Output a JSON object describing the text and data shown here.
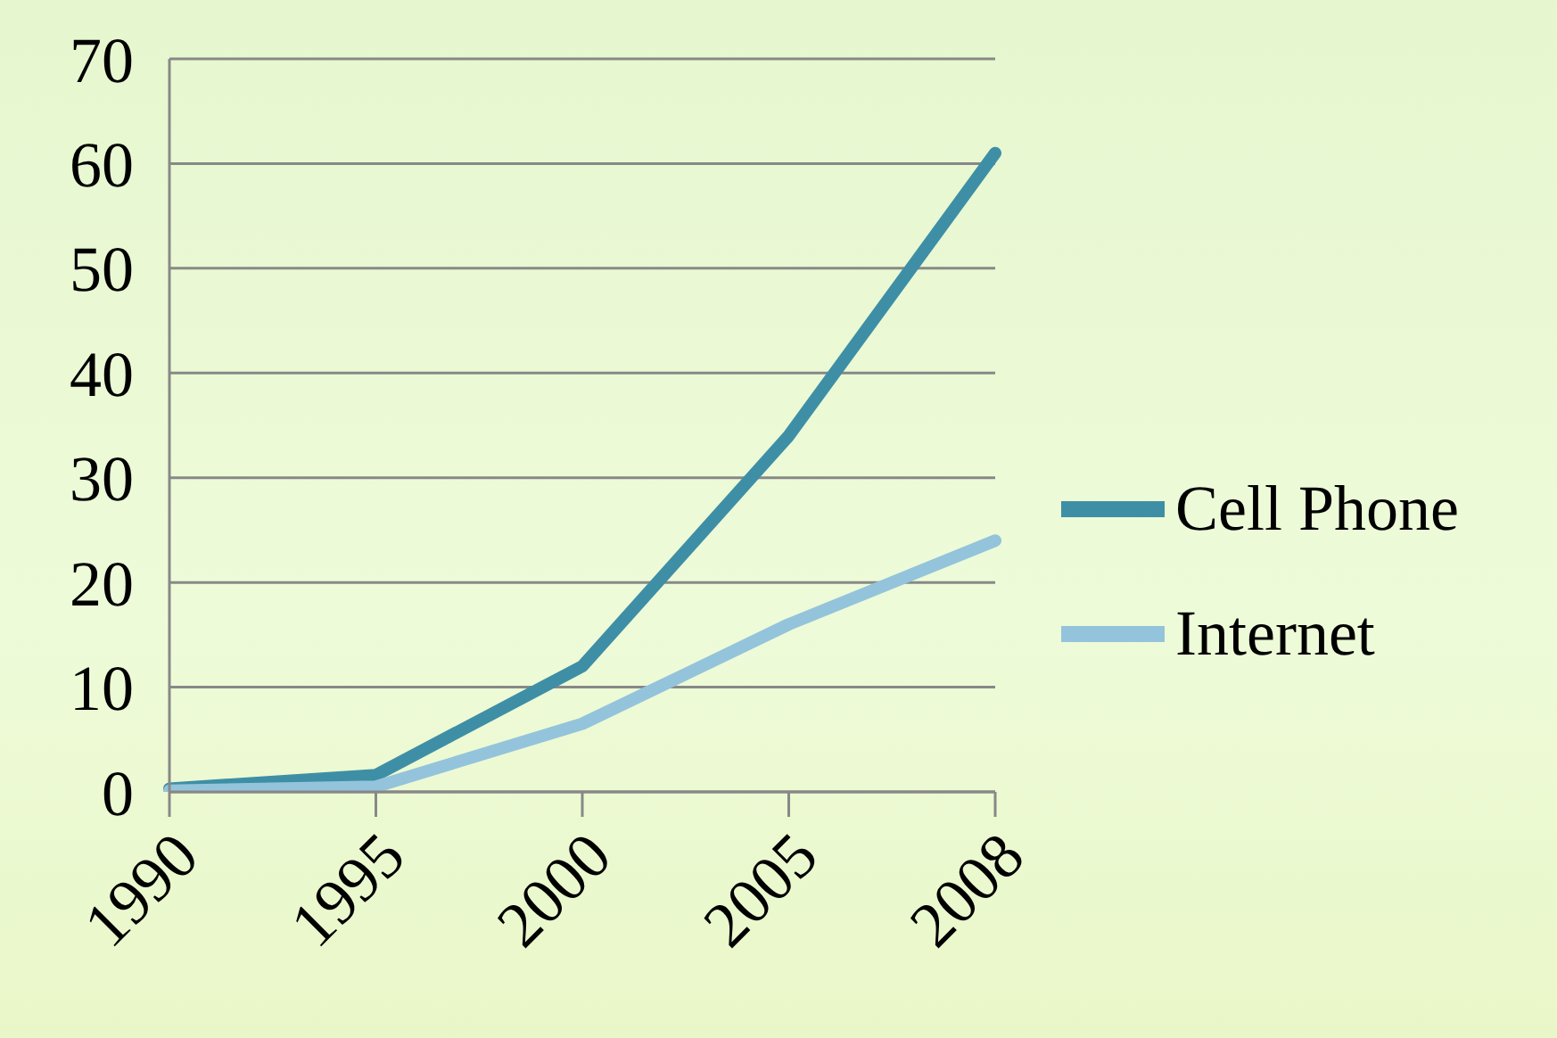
{
  "chart_data": {
    "type": "line",
    "categories": [
      "1990",
      "1995",
      "2000",
      "2005",
      "2008"
    ],
    "series": [
      {
        "name": "Cell Phone",
        "color": "#3e8fa6",
        "values": [
          0.3,
          1.6,
          12,
          34,
          61
        ]
      },
      {
        "name": "Internet",
        "color": "#94c4db",
        "values": [
          0.1,
          0.5,
          6.5,
          16,
          24
        ]
      }
    ],
    "ylim": [
      0,
      70
    ],
    "yticks": [
      0,
      10,
      20,
      30,
      40,
      50,
      60,
      70
    ],
    "grid": "y",
    "legend": "right",
    "marker": "none",
    "line_style": "solid"
  }
}
